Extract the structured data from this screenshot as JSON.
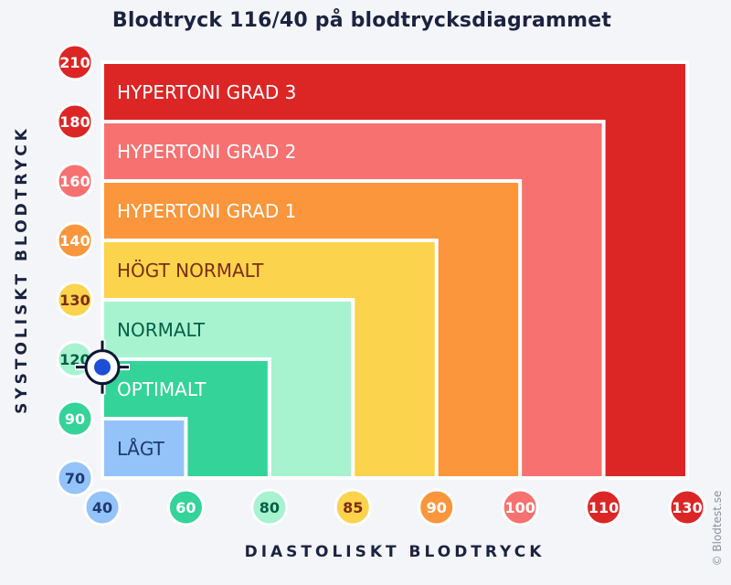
{
  "chart_data": {
    "type": "area",
    "title": "Blodtryck 116/40 på blodtrycksdiagrammet",
    "xlabel": "DIASTOLISKT BLODTRYCK",
    "ylabel": "SYSTOLISKT BLODTRYCK",
    "credit": "© Blodtest.se",
    "x_ticks": [
      {
        "label": "40",
        "color": "#93c3f9",
        "text_color": "#1e3a70"
      },
      {
        "label": "60",
        "color": "#34d399",
        "text_color": "#ffffff"
      },
      {
        "label": "80",
        "color": "#a7f3d0",
        "text_color": "#065f46"
      },
      {
        "label": "85",
        "color": "#fcd34d",
        "text_color": "#7c2d12"
      },
      {
        "label": "90",
        "color": "#fb963c",
        "text_color": "#ffffff"
      },
      {
        "label": "100",
        "color": "#f87171",
        "text_color": "#ffffff"
      },
      {
        "label": "110",
        "color": "#dc2626",
        "text_color": "#ffffff"
      },
      {
        "label": "130",
        "color": "#dc2626",
        "text_color": "#ffffff"
      }
    ],
    "y_ticks": [
      {
        "label": "70",
        "color": "#93c3f9",
        "text_color": "#1e3a70"
      },
      {
        "label": "90",
        "color": "#34d399",
        "text_color": "#ffffff"
      },
      {
        "label": "120",
        "color": "#a7f3d0",
        "text_color": "#065f46"
      },
      {
        "label": "130",
        "color": "#fcd34d",
        "text_color": "#7c2d12"
      },
      {
        "label": "140",
        "color": "#fb963c",
        "text_color": "#ffffff"
      },
      {
        "label": "160",
        "color": "#f87171",
        "text_color": "#ffffff"
      },
      {
        "label": "180",
        "color": "#dc2626",
        "text_color": "#ffffff"
      },
      {
        "label": "210",
        "color": "#dc2626",
        "text_color": "#ffffff"
      }
    ],
    "zones": [
      {
        "label": "HYPERTONI GRAD 3",
        "max_systolic": 210,
        "max_diastolic": 130,
        "color": "#dc2626",
        "text_color": "#ffffff"
      },
      {
        "label": "HYPERTONI GRAD 2",
        "max_systolic": 180,
        "max_diastolic": 110,
        "color": "#f87171",
        "text_color": "#ffffff"
      },
      {
        "label": "HYPERTONI GRAD 1",
        "max_systolic": 160,
        "max_diastolic": 100,
        "color": "#fb963c",
        "text_color": "#ffffff"
      },
      {
        "label": "HÖGT NORMALT",
        "max_systolic": 140,
        "max_diastolic": 90,
        "color": "#fcd34d",
        "text_color": "#7c2d12"
      },
      {
        "label": "NORMALT",
        "max_systolic": 130,
        "max_diastolic": 85,
        "color": "#a7f3d0",
        "text_color": "#065f46"
      },
      {
        "label": "OPTIMALT",
        "max_systolic": 120,
        "max_diastolic": 80,
        "color": "#34d399",
        "text_color": "#ffffff"
      },
      {
        "label": "LÅGT",
        "max_systolic": 90,
        "max_diastolic": 60,
        "color": "#93c3f9",
        "text_color": "#1e3a70"
      }
    ],
    "point": {
      "systolic": 116,
      "diastolic": 40,
      "color": "#1d4ed8"
    }
  }
}
